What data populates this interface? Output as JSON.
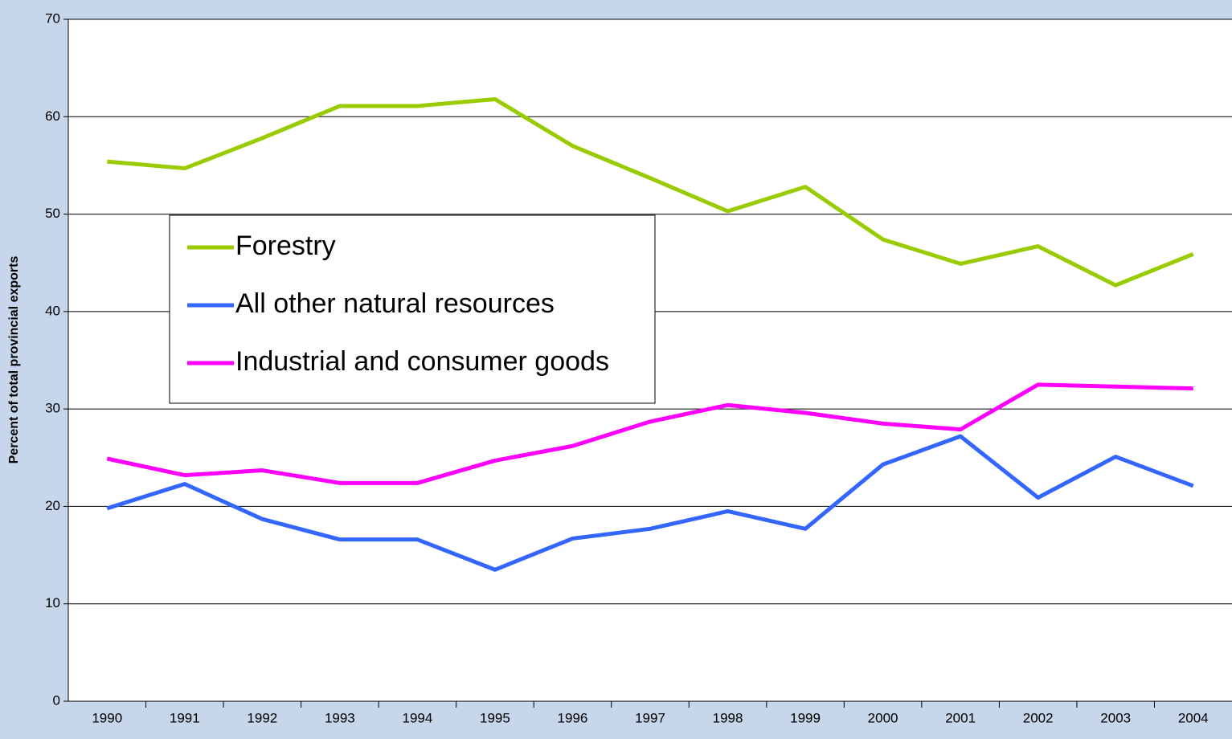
{
  "chart_data": {
    "type": "line",
    "y_label": "Percent of total provincial exports",
    "categories": [
      "1990",
      "1991",
      "1992",
      "1993",
      "1994",
      "1995",
      "1996",
      "1997",
      "1998",
      "1999",
      "2000",
      "2001",
      "2002",
      "2003",
      "2004"
    ],
    "series": [
      {
        "name": "Forestry",
        "color": "#99cc00",
        "values": [
          55.4,
          54.7,
          57.8,
          61.1,
          61.1,
          61.8,
          57.0,
          53.7,
          50.3,
          52.8,
          47.4,
          44.9,
          46.7,
          42.7,
          45.9
        ]
      },
      {
        "name": "All other natural resources",
        "color": "#3366ff",
        "values": [
          19.8,
          22.3,
          18.7,
          16.6,
          16.6,
          13.5,
          16.7,
          17.7,
          19.5,
          17.7,
          24.3,
          27.2,
          20.9,
          25.1,
          22.1
        ]
      },
      {
        "name": "Industrial and consumer goods",
        "color": "#ff00ff",
        "values": [
          24.9,
          23.2,
          23.7,
          22.4,
          22.4,
          24.7,
          26.2,
          28.7,
          30.4,
          29.6,
          28.5,
          27.9,
          32.5,
          32.3,
          32.1
        ]
      }
    ],
    "ylim": [
      0,
      70
    ],
    "yticks": [
      0,
      10,
      20,
      30,
      40,
      50,
      60,
      70
    ],
    "grid": true,
    "legend_position": "left"
  }
}
